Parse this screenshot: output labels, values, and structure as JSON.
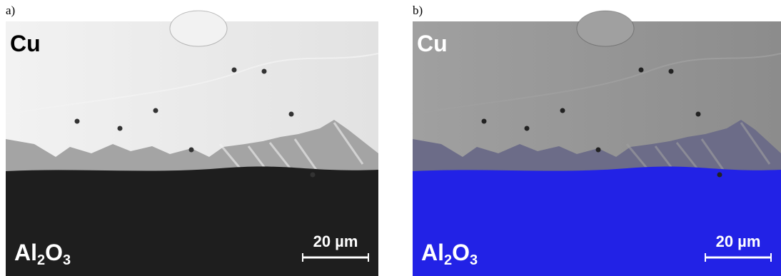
{
  "panels": [
    {
      "label": "a)",
      "top_material": "Cu",
      "bottom_material": [
        "Al",
        "2",
        "O",
        "3"
      ],
      "scale_bar": "20 µm"
    },
    {
      "label": "b)",
      "top_material": "Cu",
      "bottom_material": [
        "Al",
        "2",
        "O",
        "3"
      ],
      "scale_bar": "20 µm"
    }
  ]
}
